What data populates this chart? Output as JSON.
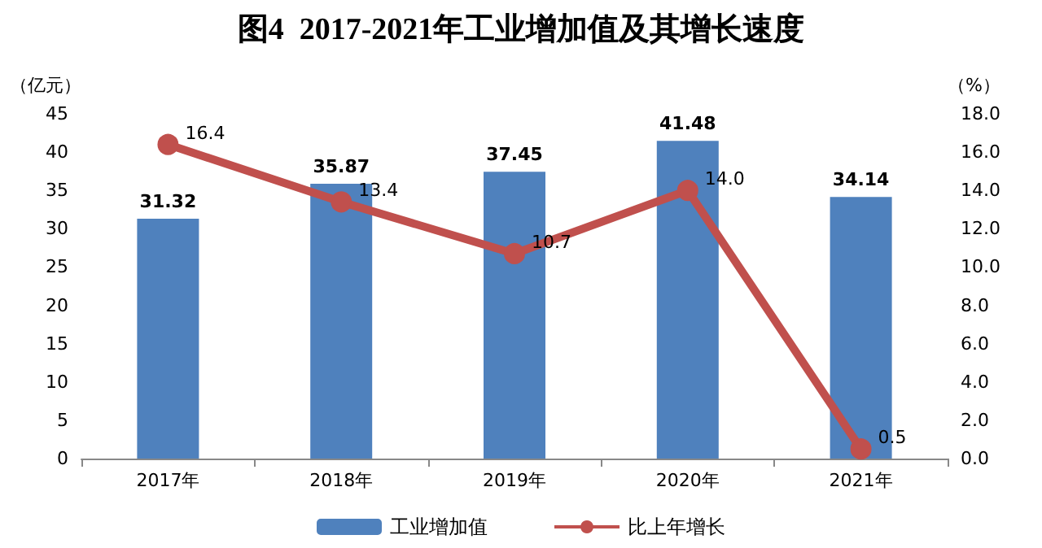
{
  "chart_data": {
    "type": "bar",
    "title": "图4  2017-2021年工业增加值及其增长速度",
    "ylabel": "（亿元）",
    "y2label": "（%）",
    "categories": [
      "2017年",
      "2018年",
      "2019年",
      "2020年",
      "2021年"
    ],
    "series": [
      {
        "name": "工业增加值",
        "color": "#4f81bd",
        "values": [
          31.32,
          35.87,
          37.45,
          41.48,
          34.14
        ]
      },
      {
        "name": "比上年增长",
        "type": "line",
        "axis": "y2",
        "color": "#c0504d",
        "values": [
          16.4,
          13.4,
          10.7,
          14.0,
          0.5
        ],
        "value_labels": [
          "16.4",
          "13.4",
          "10.7",
          "14.0",
          "0.5"
        ]
      }
    ],
    "ylim": [
      0,
      45
    ],
    "yticks": [
      0,
      5,
      10,
      15,
      20,
      25,
      30,
      35,
      40,
      45
    ],
    "y2lim": [
      0,
      18
    ],
    "y2ticks": [
      {
        "value": 0,
        "label": "0.0"
      },
      {
        "value": 2,
        "label": "2.0"
      },
      {
        "value": 4,
        "label": "4.0"
      },
      {
        "value": 6,
        "label": "6.0"
      },
      {
        "value": 8,
        "label": "8.0"
      },
      {
        "value": 10,
        "label": "10.0"
      },
      {
        "value": 12,
        "label": "12.0"
      },
      {
        "value": 14,
        "label": "14.0"
      },
      {
        "value": 16,
        "label": "16.0"
      },
      {
        "value": 18,
        "label": "18.0"
      }
    ],
    "data_labels": true,
    "grid": false,
    "legend": "bottom",
    "marker": "circle",
    "line_style": "solid"
  }
}
